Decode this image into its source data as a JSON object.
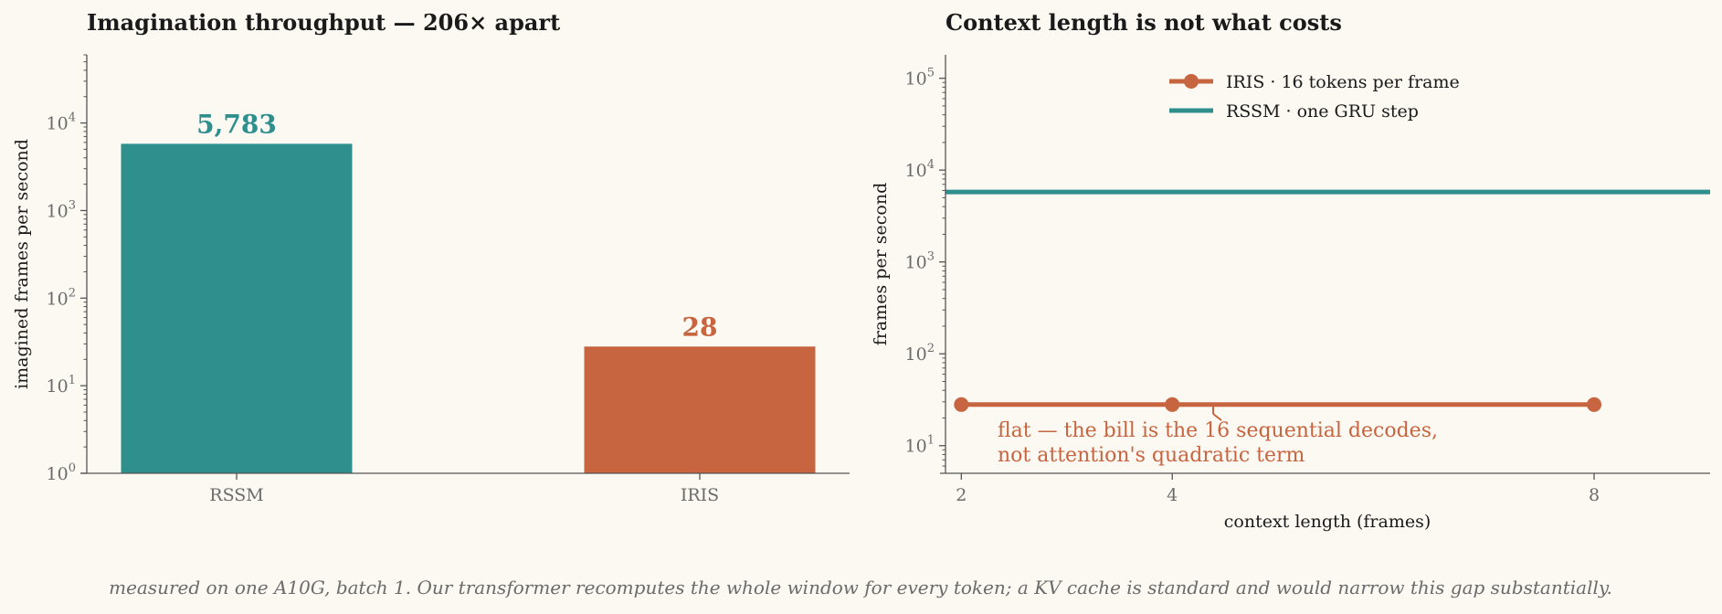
{
  "colors": {
    "rssm": "#2e8f8c",
    "iris": "#c66540",
    "axis": "#555555",
    "tick_text": "#6b6b6b",
    "background": "#fcf8f2"
  },
  "chart_data": [
    {
      "type": "bar",
      "title": "Imagination throughput — 206× apart",
      "ylabel": "imagined frames per second",
      "xlabel": "",
      "y_scale": "log",
      "ylim": [
        1,
        60000
      ],
      "y_ticks": [
        {
          "value": 1,
          "base": "10",
          "exp": "0"
        },
        {
          "value": 10,
          "base": "10",
          "exp": "1"
        },
        {
          "value": 100,
          "base": "10",
          "exp": "2"
        },
        {
          "value": 1000,
          "base": "10",
          "exp": "3"
        },
        {
          "value": 10000,
          "base": "10",
          "exp": "4"
        }
      ],
      "categories": [
        "RSSM",
        "IRIS"
      ],
      "values": [
        5783,
        28
      ],
      "value_labels": [
        "5,783",
        "28"
      ],
      "bar_colors": [
        "#2e8f8c",
        "#c66540"
      ],
      "grid": false
    },
    {
      "type": "line",
      "title": "Context length is not what costs",
      "xlabel": "context length (frames)",
      "ylabel": "frames per second",
      "y_scale": "log",
      "ylim": [
        5,
        180000
      ],
      "xlim": [
        1.85,
        9.1
      ],
      "x_ticks": [
        "2",
        "4",
        "8"
      ],
      "x_tick_values": [
        2,
        4,
        8
      ],
      "y_ticks": [
        {
          "value": 10,
          "base": "10",
          "exp": "1"
        },
        {
          "value": 100,
          "base": "10",
          "exp": "2"
        },
        {
          "value": 1000,
          "base": "10",
          "exp": "3"
        },
        {
          "value": 10000,
          "base": "10",
          "exp": "4"
        },
        {
          "value": 100000,
          "base": "10",
          "exp": "5"
        }
      ],
      "series": [
        {
          "name": "IRIS · 16 tokens per frame",
          "x": [
            2,
            4,
            8
          ],
          "y": [
            28,
            28,
            28
          ],
          "color": "#c66540",
          "markers": true
        },
        {
          "name": "RSSM · one GRU step",
          "x": [
            1.85,
            9.1
          ],
          "y": [
            5783,
            5783
          ],
          "color": "#2e8f8c",
          "markers": false
        }
      ],
      "legend_position": "top-center",
      "annotation": {
        "lines": [
          "flat — the bill is the 16 sequential decodes,",
          "not attention's quadratic term"
        ],
        "points_to": {
          "x": 4,
          "y": 28
        },
        "color": "#c66540"
      },
      "grid": false
    }
  ],
  "footnote": "measured on one A10G, batch 1. Our transformer recomputes the whole window for every token; a KV cache is standard and would narrow this gap substantially."
}
